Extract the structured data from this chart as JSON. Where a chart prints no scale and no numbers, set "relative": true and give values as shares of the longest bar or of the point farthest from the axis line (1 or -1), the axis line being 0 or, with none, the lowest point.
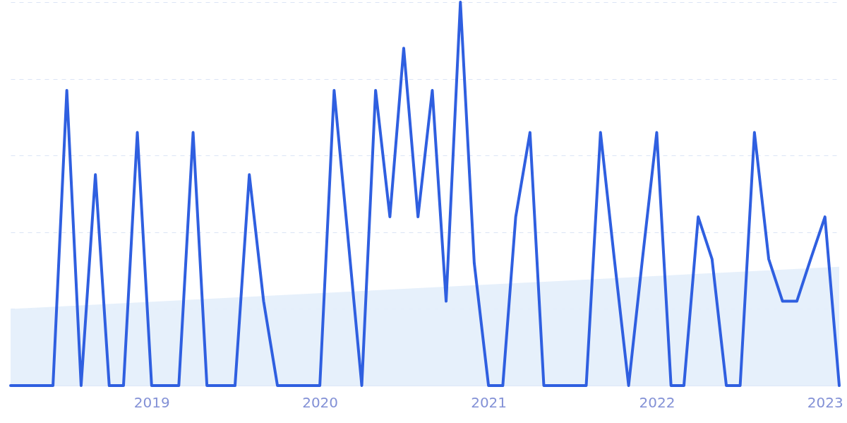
{
  "chart_data": {
    "type": "line",
    "relative": true,
    "grid": "y",
    "xlim": [
      "2018-03",
      "2023-02"
    ],
    "xticks": [
      "2019",
      "2020",
      "2021",
      "2022",
      "2023"
    ],
    "x": [
      "2018-03",
      "2018-04",
      "2018-05",
      "2018-06",
      "2018-07",
      "2018-08",
      "2018-09",
      "2018-10",
      "2018-11",
      "2018-12",
      "2019-01",
      "2019-02",
      "2019-03",
      "2019-04",
      "2019-05",
      "2019-06",
      "2019-07",
      "2019-08",
      "2019-09",
      "2019-10",
      "2019-11",
      "2019-12",
      "2020-01",
      "2020-02",
      "2020-03",
      "2020-04",
      "2020-05",
      "2020-06",
      "2020-07",
      "2020-08",
      "2020-09",
      "2020-10",
      "2020-11",
      "2020-12",
      "2021-01",
      "2021-02",
      "2021-03",
      "2021-04",
      "2021-05",
      "2021-06",
      "2021-07",
      "2021-08",
      "2021-09",
      "2021-10",
      "2021-11",
      "2021-12",
      "2022-01",
      "2022-02",
      "2022-03",
      "2022-04",
      "2022-05",
      "2022-06",
      "2022-07",
      "2022-08",
      "2022-09",
      "2022-10",
      "2022-11",
      "2022-12",
      "2023-01",
      "2023-02"
    ],
    "series": [
      {
        "type": "area",
        "color": "#e3eefb",
        "x": [
          "2018-03",
          "2023-02"
        ],
        "values": [
          0.2,
          0.31
        ]
      },
      {
        "color": "#2f5fe0",
        "values": [
          0,
          0,
          0,
          0,
          0.77,
          0,
          0.55,
          0,
          0,
          0.66,
          0,
          0,
          0,
          0.66,
          0,
          0,
          0,
          0.55,
          0.22,
          0,
          0,
          0,
          0,
          0.77,
          0.4,
          0,
          0.77,
          0.44,
          0.88,
          0.44,
          0.77,
          0.22,
          1,
          0.32,
          0,
          0,
          0.44,
          0.66,
          0,
          0,
          0,
          0,
          0.66,
          0.33,
          0,
          0.33,
          0.66,
          0,
          0,
          0.44,
          0.33,
          0,
          0,
          0.66,
          0.33,
          0.22,
          0.22,
          0.33,
          0.44,
          0
        ]
      }
    ]
  }
}
